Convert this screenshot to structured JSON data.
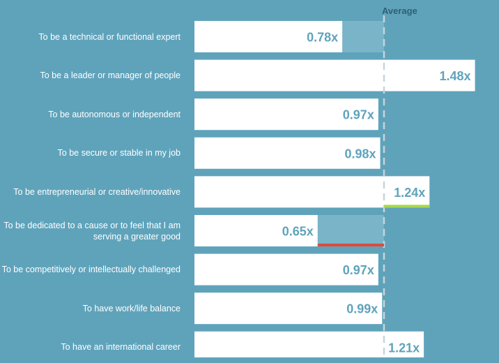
{
  "chart_data": {
    "type": "bar",
    "orientation": "horizontal",
    "average_label": "Average",
    "average_value": 1.0,
    "categories": [
      "To be a technical or functional expert",
      "To be a leader or manager of people",
      "To be autonomous or independent",
      "To be secure or stable in my job",
      "To be entrepreneurial or creative/innovative",
      "To be dedicated to a cause or to feel that I am serving a greater good",
      "To be competitively or intellectually challenged",
      "To have work/life balance",
      "To have an international career"
    ],
    "values": [
      0.78,
      1.48,
      0.97,
      0.98,
      1.24,
      0.65,
      0.97,
      0.99,
      1.21
    ],
    "value_labels": [
      "0.78x",
      "1.48x",
      "0.97x",
      "0.98x",
      "1.24x",
      "0.65x",
      "0.97x",
      "0.99x",
      "1.21x"
    ],
    "highlight": [
      null,
      null,
      null,
      null,
      "high",
      "low",
      null,
      null,
      null
    ],
    "colors": {
      "background": "#5fa3bb",
      "bar": "#ffffff",
      "gap_fill": "#79b4c8",
      "value_text": "#5fa3bb",
      "average_line": "#c8d4d9",
      "average_text": "#2f5f73",
      "highlight_high": "#a6d94a",
      "highlight_low": "#e04a3a"
    }
  }
}
